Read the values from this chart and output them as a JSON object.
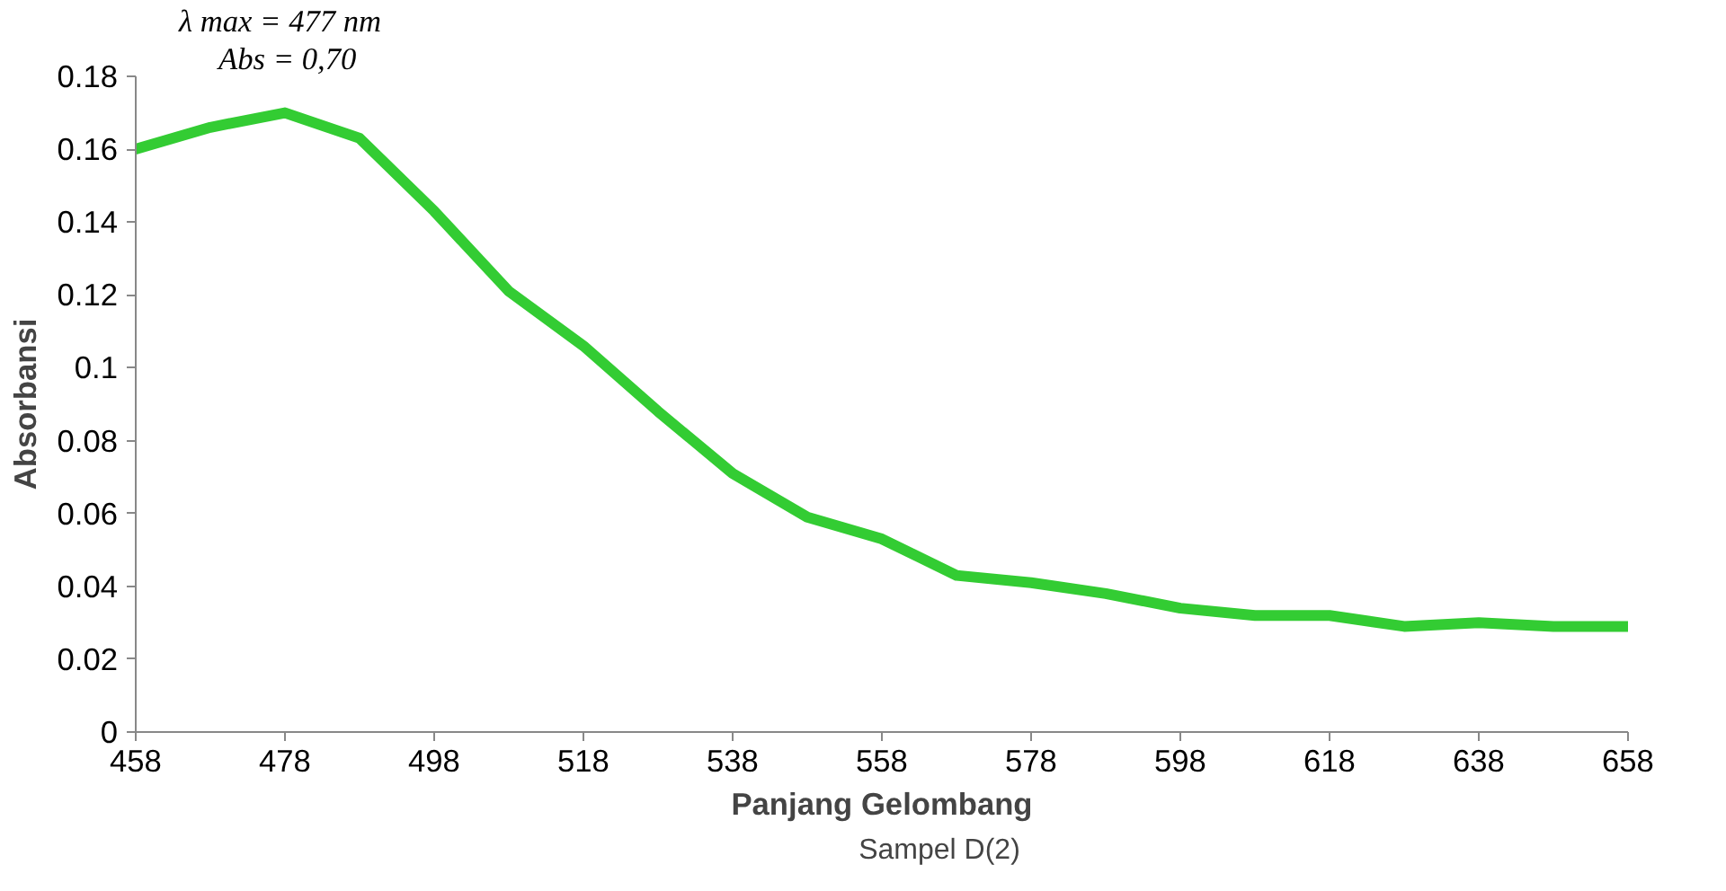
{
  "chart_data": {
    "type": "line",
    "xlabel": "Panjang Gelombang",
    "ylabel": "Absorbansi",
    "annotations": [
      "λ max = 477 nm",
      "Abs = 0,70"
    ],
    "x": [
      458,
      468,
      478,
      488,
      498,
      508,
      518,
      528,
      538,
      548,
      558,
      568,
      578,
      588,
      598,
      608,
      618,
      628,
      638,
      648,
      658
    ],
    "series": [
      {
        "name": "Sampel D(2)",
        "color": "#33cc33",
        "values": [
          0.16,
          0.166,
          0.17,
          0.163,
          0.143,
          0.121,
          0.106,
          0.088,
          0.071,
          0.059,
          0.053,
          0.043,
          0.041,
          0.038,
          0.034,
          0.032,
          0.032,
          0.029,
          0.03,
          0.029,
          0.029
        ]
      }
    ],
    "xlim": [
      458,
      658
    ],
    "xticks": [
      458,
      478,
      498,
      518,
      538,
      558,
      578,
      598,
      618,
      638,
      658
    ],
    "ylim": [
      0,
      0.18
    ],
    "yticks": [
      0,
      0.02,
      0.04,
      0.06,
      0.08,
      0.1,
      0.12,
      0.14,
      0.16,
      0.18
    ],
    "grid": false,
    "legend": "bottom",
    "line_style": "solid",
    "marker": "none"
  }
}
